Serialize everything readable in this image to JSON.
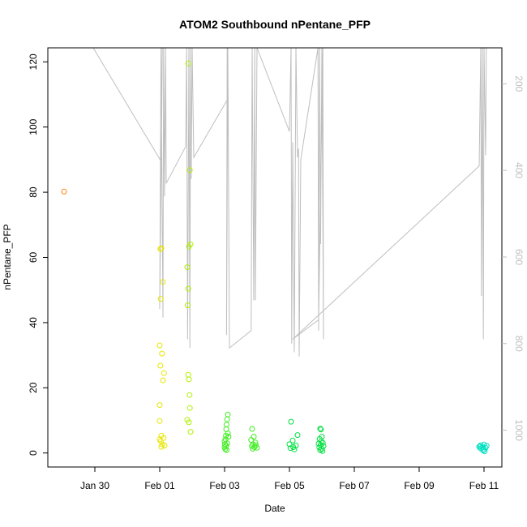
{
  "chart_data": {
    "type": "scatter",
    "title": "ATOM2 Southbound nPentane_PFP",
    "xlabel": "Date",
    "ylabel": "nPentane_PFP",
    "x_ticks": [
      "Jan 30",
      "Feb 01",
      "Feb 03",
      "Feb 05",
      "Feb 07",
      "Feb 09",
      "Feb 11"
    ],
    "x_tick_days": [
      0,
      2,
      4,
      6,
      8,
      10,
      12
    ],
    "xlim_days": [
      -1.45,
      12.55
    ],
    "y_ticks": [
      0,
      20,
      40,
      60,
      80,
      100,
      120
    ],
    "ylim": [
      -4.3,
      124.3
    ],
    "y2_ticks": [
      200,
      400,
      600,
      800,
      1000
    ],
    "y2lim": [
      117,
      1085
    ],
    "colors": {
      "orange": "#ff8000",
      "yellow": "#e6e600",
      "lime": "#b0f000",
      "green": "#40ee20",
      "bright-green": "#00e040",
      "cyan": "#00e0c0",
      "pressure": "#bebebe"
    },
    "series": [
      {
        "color": "orange",
        "points": [
          [
            -0.95,
            80.2
          ]
        ]
      },
      {
        "color": "yellow",
        "points": [
          [
            2.02,
            62.6
          ],
          [
            2.05,
            62.8
          ],
          [
            2.1,
            52.5
          ],
          [
            2.03,
            47.3
          ],
          [
            2.0,
            33.0
          ],
          [
            2.07,
            30.5
          ],
          [
            2.02,
            26.8
          ],
          [
            2.13,
            24.5
          ],
          [
            2.1,
            22.3
          ],
          [
            2.0,
            14.7
          ],
          [
            2.0,
            9.8
          ],
          [
            2.05,
            5.3
          ],
          [
            2.12,
            4.6
          ],
          [
            2.03,
            3.6
          ],
          [
            2.08,
            2.6
          ],
          [
            2.15,
            2.3
          ],
          [
            2.0,
            4.2
          ],
          [
            2.05,
            1.9
          ]
        ]
      },
      {
        "color": "lime",
        "points": [
          [
            2.88,
            119.5
          ],
          [
            2.93,
            86.8
          ],
          [
            2.95,
            64.0
          ],
          [
            2.9,
            63.3
          ],
          [
            2.85,
            57.0
          ],
          [
            2.88,
            50.4
          ],
          [
            2.86,
            45.3
          ],
          [
            2.88,
            24.0
          ],
          [
            2.9,
            22.6
          ],
          [
            2.92,
            17.8
          ],
          [
            2.93,
            13.8
          ],
          [
            2.85,
            10.2
          ],
          [
            2.9,
            9.4
          ],
          [
            2.95,
            6.5
          ]
        ]
      },
      {
        "color": "green",
        "points": [
          [
            4.1,
            11.8
          ],
          [
            4.08,
            10.3
          ],
          [
            4.06,
            8.7
          ],
          [
            4.05,
            7.3
          ],
          [
            4.1,
            6.0
          ],
          [
            4.04,
            5.3
          ],
          [
            4.12,
            5.0
          ],
          [
            4.03,
            4.2
          ],
          [
            4.0,
            3.6
          ],
          [
            4.08,
            3.0
          ],
          [
            4.01,
            2.7
          ],
          [
            4.05,
            2.2
          ],
          [
            4.0,
            1.8
          ],
          [
            4.02,
            1.2
          ],
          [
            4.06,
            0.9
          ],
          [
            4.85,
            7.4
          ],
          [
            4.9,
            5.0
          ],
          [
            4.82,
            4.0
          ],
          [
            4.95,
            3.2
          ],
          [
            4.88,
            2.6
          ],
          [
            4.84,
            2.1
          ],
          [
            4.92,
            1.8
          ],
          [
            5.0,
            1.6
          ],
          [
            4.87,
            1.3
          ],
          [
            4.96,
            2.4
          ]
        ]
      },
      {
        "color": "bright-green",
        "points": [
          [
            6.05,
            9.6
          ],
          [
            6.25,
            5.5
          ],
          [
            6.1,
            3.8
          ],
          [
            6.0,
            2.7
          ],
          [
            6.2,
            2.3
          ],
          [
            6.12,
            1.8
          ],
          [
            6.03,
            1.5
          ],
          [
            6.15,
            1.1
          ],
          [
            6.95,
            7.5
          ],
          [
            6.97,
            7.2
          ],
          [
            7.0,
            5.0
          ],
          [
            6.93,
            4.3
          ],
          [
            6.98,
            3.6
          ],
          [
            7.03,
            3.1
          ],
          [
            6.96,
            2.5
          ],
          [
            7.05,
            2.1
          ],
          [
            6.92,
            1.7
          ],
          [
            7.0,
            1.3
          ],
          [
            6.95,
            0.9
          ],
          [
            7.02,
            0.6
          ],
          [
            6.9,
            2.9
          ]
        ]
      },
      {
        "color": "cyan",
        "points": [
          [
            11.9,
            2.4
          ],
          [
            12.0,
            2.6
          ],
          [
            11.85,
            1.9
          ],
          [
            11.95,
            1.7
          ],
          [
            12.05,
            1.6
          ],
          [
            11.9,
            1.4
          ],
          [
            12.0,
            1.1
          ],
          [
            11.97,
            0.8
          ],
          [
            12.02,
            0.5
          ],
          [
            11.88,
            2.0
          ],
          [
            12.08,
            2.2
          ]
        ]
      }
    ],
    "pressure_series": {
      "color": "pressure",
      "points": [
        [
          -1.45,
          117
        ],
        [
          -0.05,
          117
        ],
        [
          2.05,
          380
        ],
        [
          2.08,
          117
        ],
        [
          2.0,
          720
        ],
        [
          2.04,
          117
        ],
        [
          2.1,
          740
        ],
        [
          2.12,
          117
        ],
        [
          2.15,
          460
        ],
        [
          2.18,
          117
        ],
        [
          2.2,
          430
        ],
        [
          2.8,
          345
        ],
        [
          2.83,
          117
        ],
        [
          2.86,
          790
        ],
        [
          2.9,
          117
        ],
        [
          2.93,
          810
        ],
        [
          2.95,
          117
        ],
        [
          2.97,
          420
        ],
        [
          3.0,
          117
        ],
        [
          3.05,
          370
        ],
        [
          4.1,
          235
        ],
        [
          4.08,
          117
        ],
        [
          4.06,
          780
        ],
        [
          4.1,
          117
        ],
        [
          4.15,
          810
        ],
        [
          4.82,
          770
        ],
        [
          4.85,
          117
        ],
        [
          4.9,
          700
        ],
        [
          4.93,
          117
        ],
        [
          4.95,
          700
        ],
        [
          5.0,
          117
        ],
        [
          6.0,
          310
        ],
        [
          6.05,
          117
        ],
        [
          6.07,
          800
        ],
        [
          6.1,
          335
        ],
        [
          6.15,
          820
        ],
        [
          6.2,
          117
        ],
        [
          6.25,
          370
        ],
        [
          6.28,
          350
        ],
        [
          6.3,
          830
        ],
        [
          6.35,
          375
        ],
        [
          6.88,
          117
        ],
        [
          6.9,
          770
        ],
        [
          6.93,
          117
        ],
        [
          6.96,
          570
        ],
        [
          7.0,
          117
        ],
        [
          7.05,
          790
        ],
        [
          7.03,
          117
        ],
        [
          6.9,
          745
        ],
        [
          6.1,
          790
        ],
        [
          11.85,
          390
        ],
        [
          11.9,
          117
        ],
        [
          11.92,
          690
        ],
        [
          11.95,
          117
        ],
        [
          11.98,
          790
        ],
        [
          12.0,
          117
        ],
        [
          12.05,
          365
        ],
        [
          12.07,
          117
        ]
      ]
    }
  }
}
